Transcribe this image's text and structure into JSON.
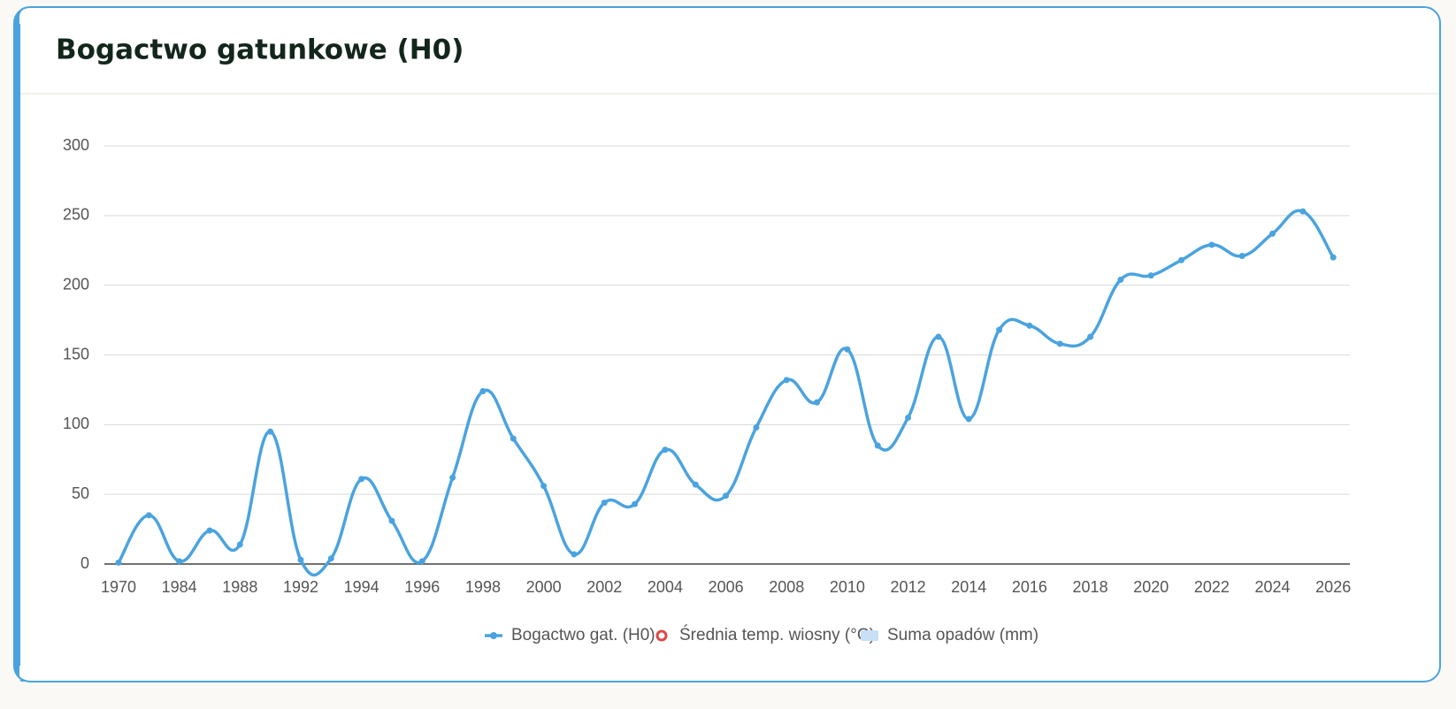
{
  "chart_data": {
    "type": "line",
    "title": "Bogactwo gatunkowe (H0)",
    "categories": [
      "1970",
      null,
      "1984",
      null,
      "1988",
      null,
      "1992",
      null,
      "1994",
      null,
      "1996",
      null,
      "1998",
      null,
      "2000",
      null,
      "2002",
      null,
      "2004",
      null,
      "2006",
      null,
      "2008",
      null,
      "2010",
      null,
      "2012",
      null,
      "2014",
      null,
      "2016",
      null,
      "2018",
      null,
      "2020",
      null,
      "2022",
      null,
      "2024",
      null,
      "2026"
    ],
    "series": [
      {
        "name": "Bogactwo gat. (H0)",
        "color": "#4aa3df",
        "values": [
          1,
          35,
          2,
          24,
          14,
          95,
          3,
          4,
          61,
          31,
          2,
          62,
          124,
          90,
          56,
          7,
          44,
          43,
          82,
          57,
          49,
          98,
          132,
          116,
          154,
          85,
          105,
          163,
          104,
          168,
          171,
          158,
          163,
          204,
          207,
          218,
          229,
          221,
          237,
          253,
          220
        ]
      }
    ],
    "legend": [
      {
        "name": "Bogactwo gat. (H0)",
        "color": "#4aa3df",
        "marker": "line-dot"
      },
      {
        "name": "Średnia temp. wiosny (°C)",
        "color": "#e04848",
        "marker": "ring"
      },
      {
        "name": "Suma opadów (mm)",
        "color": "#c9def7",
        "marker": "box"
      }
    ],
    "ylim": [
      0,
      300
    ],
    "yticks": [
      0,
      50,
      100,
      150,
      200,
      250,
      300
    ],
    "grid": true
  }
}
